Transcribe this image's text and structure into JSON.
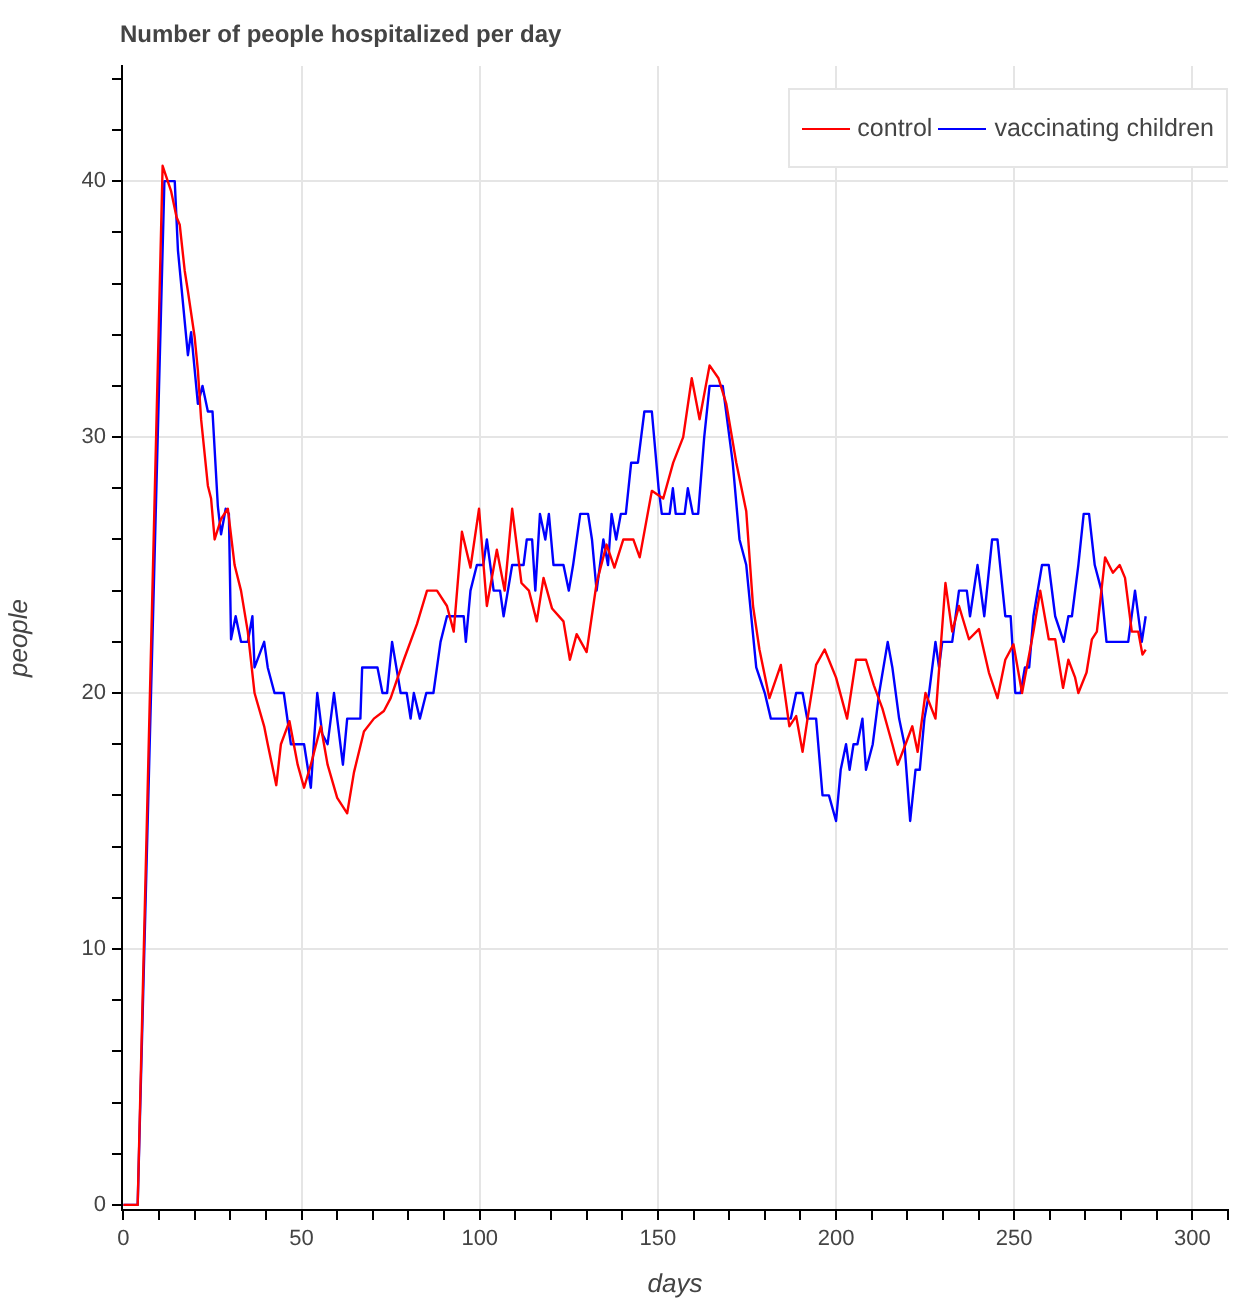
{
  "chart_data": {
    "type": "line",
    "title": "Number of people hospitalized per day",
    "xlabel": "days",
    "ylabel": "people",
    "xlim": [
      -0.4,
      310
    ],
    "ylim": [
      -0.2,
      44.5
    ],
    "xticks": [
      0,
      {
        "value": 10,
        "label": null
      },
      {
        "value": 20,
        "label": null
      },
      {
        "value": 30,
        "label": null
      },
      {
        "value": 40,
        "label": null
      },
      50,
      {
        "value": 60,
        "label": null
      },
      {
        "value": 70,
        "label": null
      },
      {
        "value": 80,
        "label": null
      },
      {
        "value": 90,
        "label": null
      },
      100,
      {
        "value": 110,
        "label": null
      },
      {
        "value": 120,
        "label": null
      },
      {
        "value": 130,
        "label": null
      },
      {
        "value": 140,
        "label": null
      },
      150,
      {
        "value": 160,
        "label": null
      },
      {
        "value": 170,
        "label": null
      },
      {
        "value": 180,
        "label": null
      },
      {
        "value": 190,
        "label": null
      },
      200,
      {
        "value": 210,
        "label": null
      },
      {
        "value": 220,
        "label": null
      },
      {
        "value": 230,
        "label": null
      },
      {
        "value": 240,
        "label": null
      },
      250,
      {
        "value": 260,
        "label": null
      },
      {
        "value": 270,
        "label": null
      },
      {
        "value": 280,
        "label": null
      },
      {
        "value": 290,
        "label": null
      },
      300,
      {
        "value": 310,
        "label": null
      }
    ],
    "yticks": [
      0,
      {
        "value": 2,
        "label": null
      },
      {
        "value": 4,
        "label": null
      },
      {
        "value": 6,
        "label": null
      },
      {
        "value": 8,
        "label": null
      },
      10,
      {
        "value": 12,
        "label": null
      },
      {
        "value": 14,
        "label": null
      },
      {
        "value": 16,
        "label": null
      },
      {
        "value": 18,
        "label": null
      },
      20,
      {
        "value": 22,
        "label": null
      },
      {
        "value": 24,
        "label": null
      },
      {
        "value": 26,
        "label": null
      },
      {
        "value": 28,
        "label": null
      },
      30,
      {
        "value": 32,
        "label": null
      },
      {
        "value": 34,
        "label": null
      },
      {
        "value": 36,
        "label": null
      },
      {
        "value": 38,
        "label": null
      },
      40,
      {
        "value": 42,
        "label": null
      },
      {
        "value": 44,
        "label": null
      }
    ],
    "grid": true,
    "legend": "top right",
    "series": [
      {
        "name": "control",
        "color": "#ff0000",
        "x": [
          0,
          4,
          11,
          13.4,
          14.9,
          15.8,
          17.2,
          18.1,
          20,
          20.9,
          21.8,
          23.7,
          24.6,
          25.6,
          27.4,
          29.3,
          31.2,
          33,
          34.9,
          36.8,
          39.5,
          40.5,
          42.9,
          44.2,
          46.6,
          48.9,
          50.7,
          52.6,
          55.4,
          57.3,
          60,
          62.8,
          64.7,
          67.5,
          70.3,
          73.1,
          75,
          78.7,
          82.4,
          85.2,
          88,
          90.8,
          92.7,
          95,
          97.4,
          99.8,
          102,
          104.8,
          107,
          109.1,
          111.7,
          113.8,
          116,
          117.9,
          120.3,
          123.5,
          125.3,
          127.2,
          130,
          132.8,
          135.6,
          137.8,
          140.3,
          143.1,
          144.9,
          148.3,
          151.5,
          154.3,
          157.1,
          159.5,
          161.7,
          164.5,
          167,
          169.2,
          172,
          174.8,
          176.7,
          178.5,
          181.3,
          184.5,
          186.9,
          188.8,
          190.6,
          192,
          194.4,
          196.8,
          200,
          203.1,
          205.6,
          208.4,
          210.6,
          213,
          215.8,
          217.3,
          219.5,
          221.4,
          222.9,
          225.1,
          227.9,
          230.7,
          232.6,
          234.5,
          237.3,
          240.1,
          242.9,
          245.3,
          247.5,
          249.8,
          252.2,
          255.4,
          257.3,
          259.7,
          261.5,
          263.7,
          265.2,
          267.1,
          268,
          270.3,
          271.8,
          273.2,
          275.5,
          277.7,
          279.6,
          281.1,
          283,
          284.8,
          286,
          286.9
        ],
        "values": [
          0,
          0,
          40.6,
          39.6,
          38.6,
          38.3,
          36.5,
          35.7,
          33.9,
          32.6,
          30.7,
          28.1,
          27.6,
          26,
          26.8,
          27.2,
          25,
          24,
          22.4,
          20,
          18.7,
          18,
          16.4,
          18,
          18.9,
          17.2,
          16.3,
          17.2,
          18.7,
          17.2,
          15.9,
          15.3,
          16.9,
          18.5,
          19,
          19.3,
          19.8,
          21.3,
          22.7,
          24,
          24,
          23.4,
          22.4,
          26.3,
          24.9,
          27.2,
          23.4,
          25.6,
          24,
          27.2,
          24.3,
          24,
          22.8,
          24.5,
          23.3,
          22.8,
          21.3,
          22.3,
          21.6,
          24.3,
          25.8,
          24.9,
          26,
          26,
          25.3,
          27.9,
          27.6,
          29,
          30,
          32.3,
          30.7,
          32.8,
          32.3,
          31.3,
          29,
          27.1,
          23.4,
          21.7,
          19.8,
          21.1,
          18.7,
          19.1,
          17.7,
          19,
          21.1,
          21.7,
          20.6,
          19,
          21.3,
          21.3,
          20.3,
          19.4,
          18,
          17.2,
          18,
          18.7,
          17.7,
          20,
          19,
          24.3,
          22.4,
          23.4,
          22.1,
          22.5,
          20.8,
          19.8,
          21.3,
          21.9,
          20,
          22.4,
          24,
          22.1,
          22.1,
          20.2,
          21.3,
          20.6,
          20,
          20.8,
          22.1,
          22.4,
          25.3,
          24.7,
          25,
          24.5,
          22.4,
          22.4,
          21.5,
          21.7
        ]
      },
      {
        "name": "vaccinating children",
        "color": "#0000ff",
        "x": [
          0,
          4,
          11.5,
          14.4,
          15.3,
          18.1,
          19,
          20.9,
          22.2,
          23.7,
          25,
          26.5,
          27.4,
          28.7,
          29.6,
          30.2,
          31.5,
          33,
          34.9,
          36.2,
          36.8,
          39.5,
          40.5,
          42.4,
          45,
          47,
          50.7,
          52.6,
          54.4,
          55.8,
          57.3,
          59.1,
          61.6,
          62.8,
          66.5,
          67,
          71.3,
          72.7,
          74,
          75.4,
          77.8,
          79.5,
          80.6,
          81.5,
          83.2,
          85,
          87,
          89,
          90.8,
          95.5,
          96.1,
          97.4,
          99.2,
          101,
          102,
          103.9,
          105.7,
          106.7,
          109.1,
          112.3,
          113.2,
          114.7,
          115.6,
          116.9,
          118.4,
          119.4,
          120.7,
          123.5,
          125,
          126.2,
          128.2,
          130.4,
          131.5,
          132.8,
          134.7,
          136,
          137,
          138.3,
          139.6,
          141,
          142.5,
          144.4,
          146.2,
          148.3,
          150.2,
          151.1,
          153.3,
          154.2,
          155,
          157.5,
          158.4,
          159.8,
          161.3,
          163,
          164.5,
          168.2,
          171,
          172.9,
          174.8,
          177.6,
          180,
          181.7,
          187.3,
          188.8,
          190.6,
          191.9,
          194.4,
          196.2,
          198,
          200,
          201.3,
          202.8,
          203.8,
          204.9,
          206,
          207.4,
          208.4,
          210.3,
          212.1,
          214.5,
          215.8,
          217.7,
          219.2,
          220.8,
          222.3,
          223.5,
          224.8,
          226.1,
          227.9,
          228.9,
          229.8,
          232.6,
          234.5,
          236.7,
          237.6,
          239.7,
          241.6,
          243.8,
          245.3,
          247.5,
          249,
          250.3,
          251.8,
          253,
          254.2,
          255.4,
          257.8,
          259.7,
          261.5,
          263.9,
          265.2,
          266.2,
          268,
          269.5,
          271,
          272.6,
          274.5,
          275.9,
          282,
          283.9,
          285.8,
          286.9
        ],
        "values": [
          0,
          0,
          40,
          40,
          37.3,
          33.2,
          34.1,
          31.3,
          32,
          31,
          31,
          27.3,
          26.2,
          27.2,
          27,
          22.1,
          23,
          22,
          22,
          23,
          21,
          22,
          21,
          20,
          20,
          18,
          18,
          16.3,
          20,
          18.4,
          18,
          20,
          17.2,
          19,
          19,
          21,
          21,
          20,
          20,
          22,
          20,
          20,
          19,
          20,
          19,
          20,
          20,
          22,
          23,
          23,
          22,
          24,
          25,
          25,
          26,
          24,
          24,
          23,
          25,
          25,
          26,
          26,
          24,
          27,
          26,
          27,
          25,
          25,
          24,
          25,
          27,
          27,
          26,
          24,
          26,
          25,
          27,
          26,
          27,
          27,
          29,
          29,
          31,
          31,
          28,
          27,
          27,
          28,
          27,
          27,
          28,
          27,
          27,
          30,
          32,
          32,
          29,
          26,
          25,
          21,
          20,
          19,
          19,
          20,
          20,
          19,
          19,
          16,
          16,
          15,
          17,
          18,
          17,
          18,
          18,
          19,
          17,
          18,
          20,
          22,
          21,
          19,
          18,
          15,
          17,
          17,
          19,
          20,
          22,
          21,
          22,
          22,
          24,
          24,
          23,
          25,
          23,
          26,
          26,
          23,
          23,
          20,
          20,
          21,
          21,
          23,
          25,
          25,
          23,
          22,
          23,
          23,
          25,
          27,
          27,
          25,
          24,
          22,
          22,
          24,
          22,
          23
        ]
      }
    ]
  }
}
